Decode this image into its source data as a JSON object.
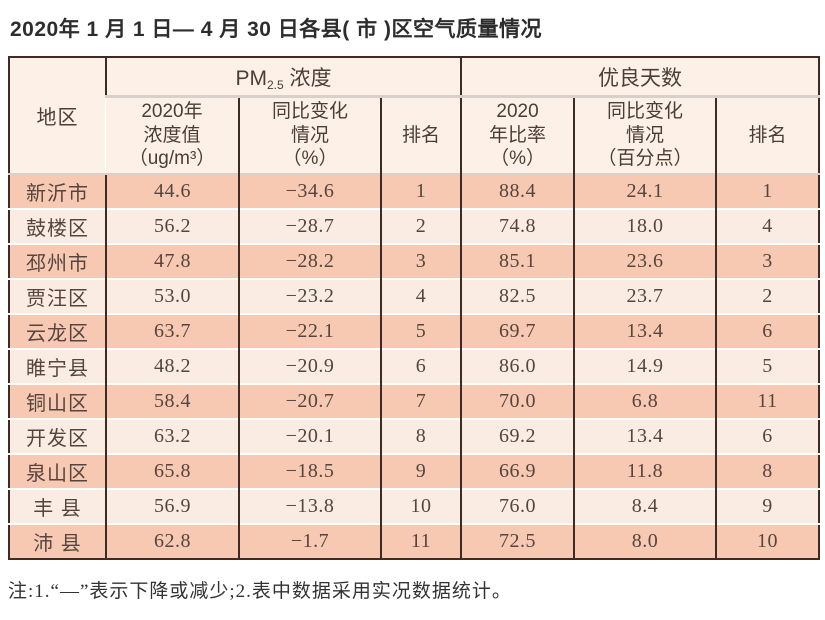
{
  "title": "2020年 1 月 1 日— 4 月 30 日各县( 市 )区空气质量情况",
  "colors": {
    "border_dark": "#3e2b24",
    "header_bg": "#fdf0e6",
    "header_line": "#d9d1c9",
    "row_odd": "#f8c9b2",
    "row_even": "#fbece3",
    "row_separator": "#ffffff",
    "cell_text": "#55453e",
    "header_text": "#4a3e38",
    "title_text": "#2d2d2d",
    "note_text": "#333333"
  },
  "table": {
    "region_header": "地区",
    "pm_group": {
      "prefix": "PM",
      "sub": "2.5",
      "suffix": " 浓度"
    },
    "good_group": "优良天数",
    "sub_headers": {
      "pm_value": "2020年\n浓度值\n（ug/m³）",
      "pm_change": "同比变化\n情况\n（%）",
      "pm_rank": "排名",
      "good_rate": "2020\n年比率\n（%）",
      "good_change": "同比变化\n情况\n（百分点）",
      "good_rank": "排名"
    },
    "row_keys": [
      "region",
      "pm_value",
      "pm_change",
      "pm_rank",
      "good_rate",
      "good_change",
      "good_rank"
    ],
    "rows": [
      {
        "region": "新沂市",
        "pm_value": "44.6",
        "pm_change": "−34.6",
        "pm_rank": "1",
        "good_rate": "88.4",
        "good_change": "24.1",
        "good_rank": "1"
      },
      {
        "region": "鼓楼区",
        "pm_value": "56.2",
        "pm_change": "−28.7",
        "pm_rank": "2",
        "good_rate": "74.8",
        "good_change": "18.0",
        "good_rank": "4"
      },
      {
        "region": "邳州市",
        "pm_value": "47.8",
        "pm_change": "−28.2",
        "pm_rank": "3",
        "good_rate": "85.1",
        "good_change": "23.6",
        "good_rank": "3"
      },
      {
        "region": "贾汪区",
        "pm_value": "53.0",
        "pm_change": "−23.2",
        "pm_rank": "4",
        "good_rate": "82.5",
        "good_change": "23.7",
        "good_rank": "2"
      },
      {
        "region": "云龙区",
        "pm_value": "63.7",
        "pm_change": "−22.1",
        "pm_rank": "5",
        "good_rate": "69.7",
        "good_change": "13.4",
        "good_rank": "6"
      },
      {
        "region": "睢宁县",
        "pm_value": "48.2",
        "pm_change": "−20.9",
        "pm_rank": "6",
        "good_rate": "86.0",
        "good_change": "14.9",
        "good_rank": "5"
      },
      {
        "region": "铜山区",
        "pm_value": "58.4",
        "pm_change": "−20.7",
        "pm_rank": "7",
        "good_rate": "70.0",
        "good_change": "6.8",
        "good_rank": "11"
      },
      {
        "region": "开发区",
        "pm_value": "63.2",
        "pm_change": "−20.1",
        "pm_rank": "8",
        "good_rate": "69.2",
        "good_change": "13.4",
        "good_rank": "6"
      },
      {
        "region": "泉山区",
        "pm_value": "65.8",
        "pm_change": "−18.5",
        "pm_rank": "9",
        "good_rate": "66.9",
        "good_change": "11.8",
        "good_rank": "8"
      },
      {
        "region": "丰 县",
        "pm_value": "56.9",
        "pm_change": "−13.8",
        "pm_rank": "10",
        "good_rate": "76.0",
        "good_change": "8.4",
        "good_rank": "9"
      },
      {
        "region": "沛 县",
        "pm_value": "62.8",
        "pm_change": "−1.7",
        "pm_rank": "11",
        "good_rate": "72.5",
        "good_change": "8.0",
        "good_rank": "10"
      }
    ]
  },
  "note": "注:1.“—”表示下降或减少;2.表中数据采用实况数据统计。"
}
